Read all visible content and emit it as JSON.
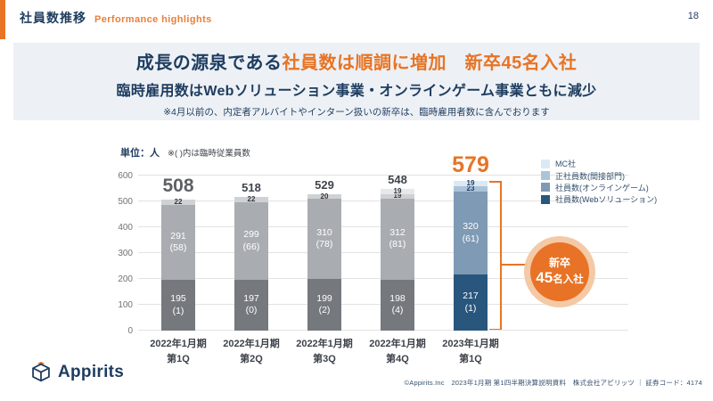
{
  "header": {
    "title": "社員数推移",
    "subtitle": "Performance highlights",
    "page_number": "18"
  },
  "headline": {
    "line1_navy": "成長の源泉である",
    "line1_orange": "社員数は順調に増加　新卒45名入社",
    "line2": "臨時雇用数はWebソリューション事業・オンラインゲーム事業ともに減少",
    "note": "※4月以前の、内定者アルバイトやインターン扱いの新卒は、臨時雇用者数に含んでおります"
  },
  "chart_data": {
    "type": "bar",
    "stacked": true,
    "unit_label": "単位：人",
    "unit_note": "※( )内は臨時従業員数",
    "ylim": [
      0,
      600
    ],
    "yticks": [
      0,
      100,
      200,
      300,
      400,
      500,
      600
    ],
    "categories": [
      {
        "line1": "2022年1月期",
        "line2": "第1Q"
      },
      {
        "line1": "2022年1月期",
        "line2": "第2Q"
      },
      {
        "line1": "2022年1月期",
        "line2": "第3Q"
      },
      {
        "line1": "2022年1月期",
        "line2": "第4Q"
      },
      {
        "line1": "2023年1月期",
        "line2": "第1Q"
      }
    ],
    "highlight_index": 4,
    "segments": [
      {
        "key": "web-solution",
        "name": "社員数(Webソリューション)",
        "values": [
          195,
          197,
          199,
          198,
          217
        ],
        "temps": [
          1,
          0,
          2,
          4,
          1
        ],
        "show_temp": true,
        "color_gray": "#75797e",
        "color_highlight": "#29567c"
      },
      {
        "key": "online-game",
        "name": "社員数(オンラインゲーム)",
        "values": [
          291,
          299,
          310,
          312,
          320
        ],
        "temps": [
          58,
          66,
          78,
          81,
          61
        ],
        "show_temp": true,
        "color_gray": "#a9adb2",
        "color_highlight": "#7e9ab4"
      },
      {
        "key": "indirect",
        "name": "正社員数(間接部門)",
        "values": [
          22,
          22,
          20,
          19,
          23
        ],
        "show_temp": false,
        "color_gray": "#cfd2d5",
        "color_highlight": "#abc4da"
      },
      {
        "key": "mc",
        "name": "MC社",
        "values": [
          0,
          0,
          0,
          19,
          19
        ],
        "show_temp": false,
        "color_gray": "#e7e8ea",
        "color_highlight": "#dce9f4"
      }
    ],
    "totals": [
      {
        "text": "508",
        "style": "first"
      },
      {
        "text": "518",
        "style": "mid"
      },
      {
        "text": "529",
        "style": "mid"
      },
      {
        "text": "548",
        "style": "mid"
      },
      {
        "text": "579",
        "style": "highlight"
      }
    ],
    "legend": [
      {
        "label": "MC社",
        "color": "#dce9f4"
      },
      {
        "label": "正社員数(間接部門)",
        "color": "#abc4da"
      },
      {
        "label": "社員数(オンラインゲーム)",
        "color": "#7e9ab4"
      },
      {
        "label": "社員数(Webソリューション)",
        "color": "#29567c"
      }
    ]
  },
  "annotation": {
    "circle_line1": "新卒",
    "circle_value": "45",
    "circle_suffix": "名入社"
  },
  "footer": {
    "logo_text": "Appirits",
    "copyright": "©Appirits.Inc　2023年1月期 第1四半期決算説明資料　株式会社アピリッツ ｜ 証券コード：4174"
  },
  "colors": {
    "brand_orange": "#e87425",
    "brand_navy": "#1e3c5f",
    "panel_bg": "#edf1f5"
  }
}
